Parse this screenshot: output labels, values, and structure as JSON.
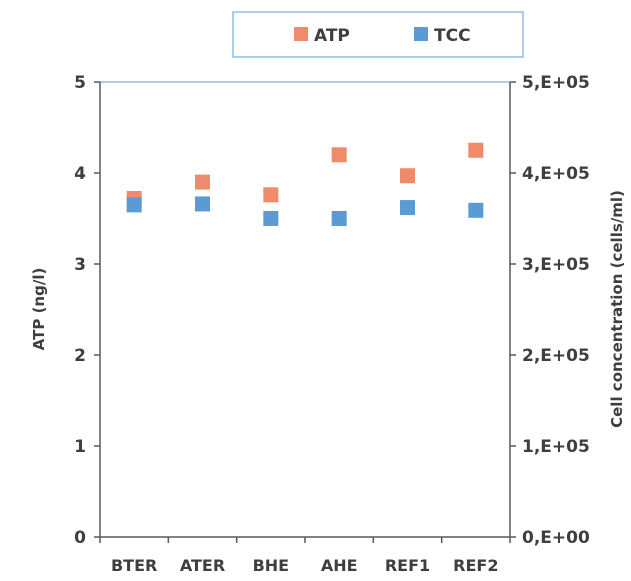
{
  "chart_data": {
    "type": "scatter",
    "categories": [
      "BTER",
      "ATER",
      "BHE",
      "AHE",
      "REF1",
      "REF2"
    ],
    "series": [
      {
        "name": "ATP",
        "axis": "left",
        "values": [
          3.72,
          3.9,
          3.76,
          4.2,
          3.97,
          4.25
        ],
        "errors": [
          0.05,
          0.07,
          0.07,
          0.07,
          0.07,
          0.07
        ],
        "color": "#f08a68"
      },
      {
        "name": "TCC",
        "axis": "right",
        "values": [
          365000,
          366000,
          350000,
          350000,
          362000,
          359000
        ],
        "color": "#5b9bd5"
      }
    ],
    "ylabel": "ATP (ng/l)",
    "y2label": "Cell concentration (cells/ml)",
    "ylim": [
      0,
      5
    ],
    "y2lim": [
      0,
      500000
    ],
    "yticks": [
      "0",
      "1",
      "2",
      "3",
      "4",
      "5"
    ],
    "y2ticks": [
      "0,E+00",
      "1,E+05",
      "2,E+05",
      "3,E+05",
      "4,E+05",
      "5,E+05"
    ],
    "legend_position": "top",
    "grid": false
  }
}
